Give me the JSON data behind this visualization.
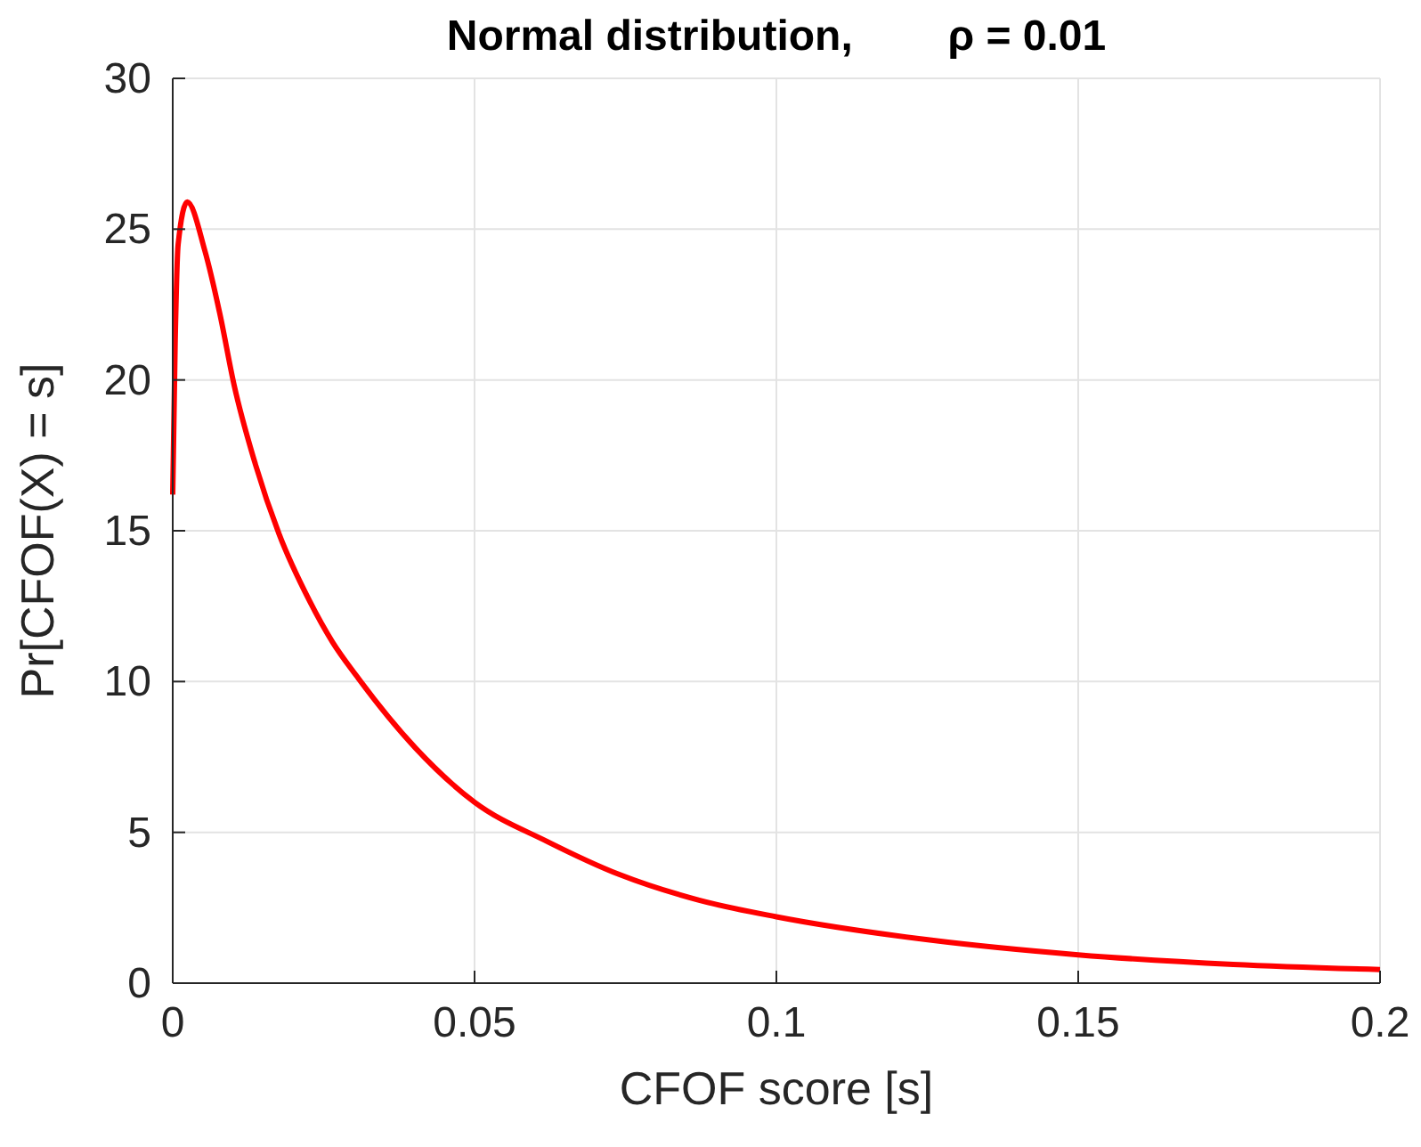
{
  "chart_data": {
    "type": "line",
    "title": "Normal distribution,        ρ = 0.01",
    "xlabel": "CFOF score [s]",
    "ylabel": "Pr[CFOF(X) = s]",
    "x": [
      0,
      0.0004,
      0.0009,
      0.0024,
      0.0053,
      0.0078,
      0.0102,
      0.0137,
      0.0176,
      0.0226,
      0.0265,
      0.0304,
      0.0402,
      0.05,
      0.062,
      0.074,
      0.0872,
      0.1,
      0.1254,
      0.15,
      0.1757,
      0.2
    ],
    "series": [
      {
        "color": "#ff0000",
        "values": [
          16.2,
          21.2,
          24.5,
          25.9,
          24.3,
          22.2,
          19.8,
          17.2,
          14.9,
          12.7,
          11.3,
          10.2,
          7.8,
          6.0,
          4.7,
          3.6,
          2.75,
          2.2,
          1.43,
          0.94,
          0.62,
          0.45
        ]
      }
    ],
    "xlim": [
      0,
      0.2
    ],
    "xticks": [
      0,
      0.05,
      0.1,
      0.15,
      0.2
    ],
    "ylim": [
      0,
      30
    ],
    "yticks": [
      0,
      5,
      10,
      15,
      20,
      25,
      30
    ],
    "grid": true,
    "marker": "none",
    "line_style": "solid"
  }
}
